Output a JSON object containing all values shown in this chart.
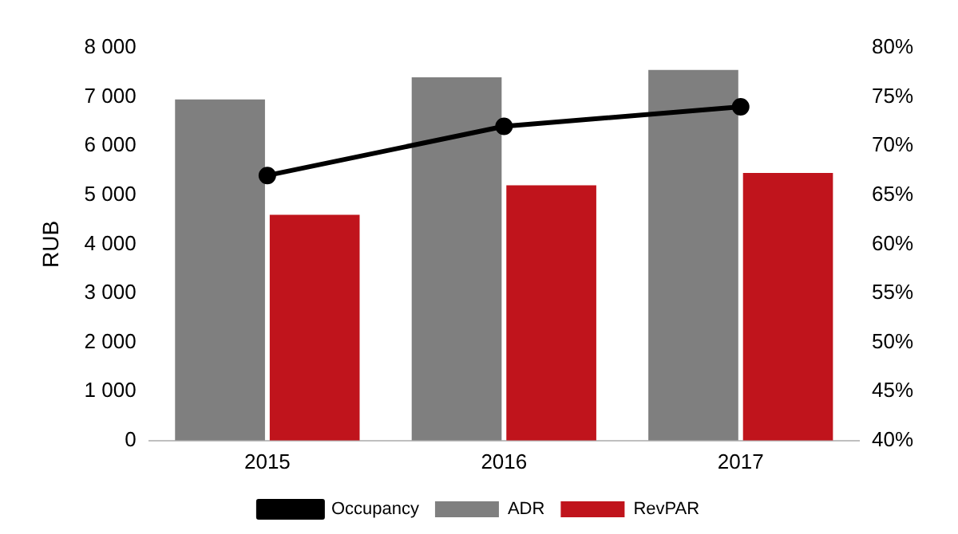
{
  "chart_data": {
    "type": "bar",
    "ylabel": "RUB",
    "categories": [
      "2015",
      "2016",
      "2017"
    ],
    "series": [
      {
        "name": "ADR",
        "color": "#7f7f7f",
        "values": [
          6950,
          7400,
          7550
        ]
      },
      {
        "name": "RevPAR",
        "color": "#c0141c",
        "values": [
          4600,
          5200,
          5450
        ]
      },
      {
        "name": "Occupancy",
        "type": "line",
        "axis": "y2",
        "color": "#000000",
        "marker": "circle",
        "values": [
          67,
          72,
          74
        ]
      }
    ],
    "ylim": [
      0,
      8000
    ],
    "yticks": [
      0,
      {
        "value": 1000,
        "label": "1 000"
      },
      {
        "value": 2000,
        "label": "2 000"
      },
      {
        "value": 3000,
        "label": "3 000"
      },
      {
        "value": 4000,
        "label": "4 000"
      },
      {
        "value": 5000,
        "label": "5 000"
      },
      {
        "value": 6000,
        "label": "6 000"
      },
      {
        "value": 7000,
        "label": "7 000"
      },
      {
        "value": 8000,
        "label": "8 000"
      }
    ],
    "y2lim": [
      40,
      80
    ],
    "y2ticks": [
      {
        "value": 40,
        "label": "40%"
      },
      {
        "value": 45,
        "label": "45%"
      },
      {
        "value": 50,
        "label": "50%"
      },
      {
        "value": 55,
        "label": "55%"
      },
      {
        "value": 60,
        "label": "60%"
      },
      {
        "value": 65,
        "label": "65%"
      },
      {
        "value": 70,
        "label": "70%"
      },
      {
        "value": 75,
        "label": "75%"
      },
      {
        "value": 80,
        "label": "80%"
      }
    ],
    "grid": false,
    "legend": "bottom"
  }
}
